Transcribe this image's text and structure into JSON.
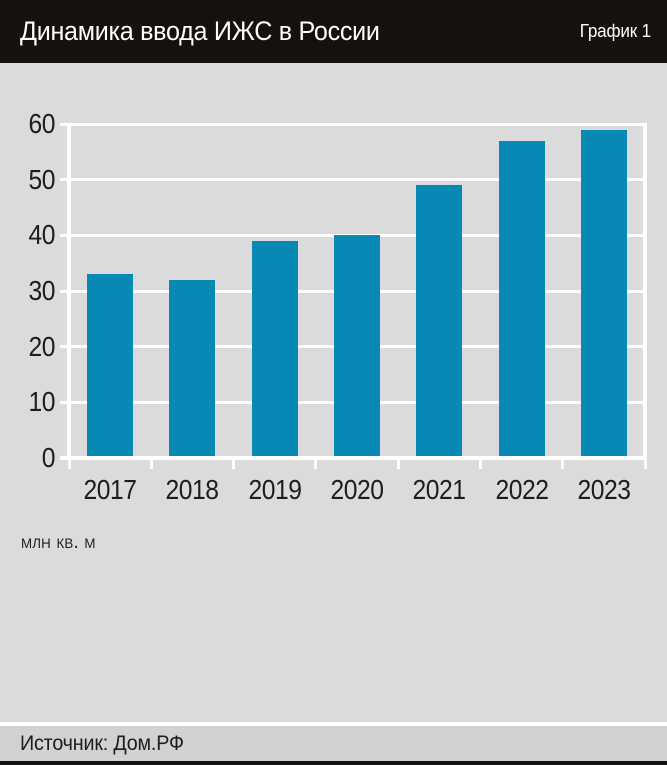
{
  "header": {
    "title": "Динамика ввода ИЖС в России",
    "tag": "График 1"
  },
  "chart_data": {
    "type": "bar",
    "title": "Динамика ввода ИЖС в России",
    "categories": [
      "2017",
      "2018",
      "2019",
      "2020",
      "2021",
      "2022",
      "2023"
    ],
    "values": [
      33,
      32,
      39,
      40,
      49,
      57,
      59
    ],
    "xlabel": "",
    "ylabel": "млн кв. м",
    "ylim": [
      0,
      60
    ],
    "yticks": [
      0,
      10,
      20,
      30,
      40,
      50,
      60
    ],
    "grid": true,
    "legend": "none",
    "bar_color": "#0889b5",
    "grid_color": "#ffffff",
    "plot_bg": "#dbdbdb"
  },
  "footer": {
    "source": "Источник: Дом.РФ"
  },
  "colors": {
    "header_bg": "#15110e",
    "page_bg": "#dbdbdb",
    "footer_bg": "#d2d2d2",
    "accent_bar": "#0889b5",
    "text_dark": "#1d1d1b",
    "text_light": "#ffffff"
  }
}
